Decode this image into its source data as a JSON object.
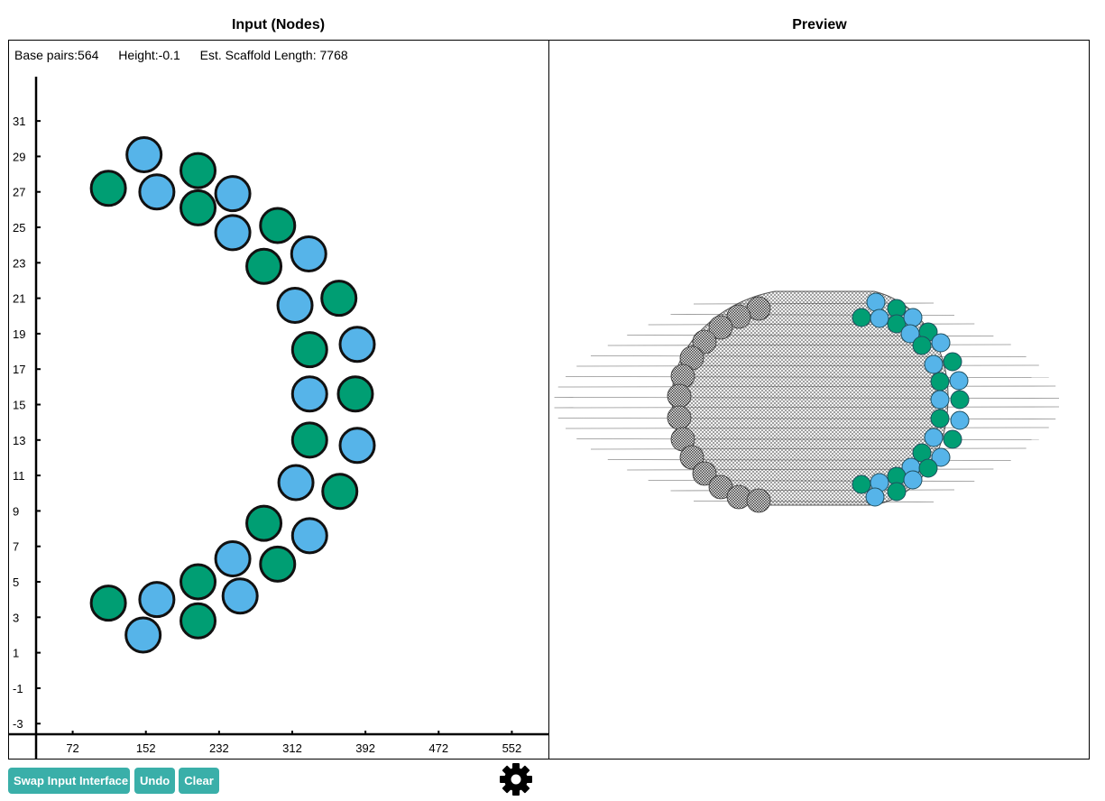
{
  "panels": {
    "input_title": "Input (Nodes)",
    "preview_title": "Preview"
  },
  "stats": {
    "base_pairs": "Base pairs:564",
    "height": "Height:-0.1",
    "scaffold": "Est. Scaffold Length: 7768"
  },
  "colors": {
    "blue_node": "#56b4e9",
    "green_node": "#009e73",
    "button": "#3aafa9"
  },
  "chart_data": {
    "type": "scatter",
    "xticks": [
      "72",
      "152",
      "232",
      "312",
      "392",
      "472",
      "552"
    ],
    "yticks": [
      "31",
      "29",
      "27",
      "25",
      "23",
      "21",
      "19",
      "17",
      "15",
      "13",
      "11",
      "9",
      "7",
      "5",
      "3",
      "1",
      "-1",
      "-3"
    ],
    "xlim": [
      32,
      592
    ],
    "ylim": [
      -3.6,
      33.5
    ],
    "series": [
      {
        "color": "#56b4e9",
        "points": [
          [
            150,
            29.1
          ],
          [
            164,
            27
          ],
          [
            247,
            26.9
          ],
          [
            247,
            24.7
          ],
          [
            330,
            23.5
          ],
          [
            315,
            20.6
          ],
          [
            383,
            18.4
          ],
          [
            331,
            15.6
          ],
          [
            383,
            12.7
          ],
          [
            316,
            10.6
          ],
          [
            331,
            7.6
          ],
          [
            247,
            6.3
          ],
          [
            255,
            4.2
          ],
          [
            164,
            4
          ],
          [
            149,
            2
          ]
        ]
      },
      {
        "color": "#009e73",
        "points": [
          [
            111,
            27.2
          ],
          [
            209,
            28.2
          ],
          [
            209,
            26.1
          ],
          [
            296,
            25.1
          ],
          [
            281,
            22.8
          ],
          [
            363,
            21
          ],
          [
            331,
            18.1
          ],
          [
            381,
            15.6
          ],
          [
            331,
            13
          ],
          [
            364,
            10.1
          ],
          [
            281,
            8.3
          ],
          [
            296,
            6
          ],
          [
            209,
            5
          ],
          [
            209,
            2.8
          ],
          [
            111,
            3.8
          ]
        ]
      }
    ]
  },
  "buttons": {
    "swap": "Swap Input Interface",
    "undo": "Undo",
    "clear": "Clear"
  },
  "icons": {
    "settings": "gear-icon"
  }
}
